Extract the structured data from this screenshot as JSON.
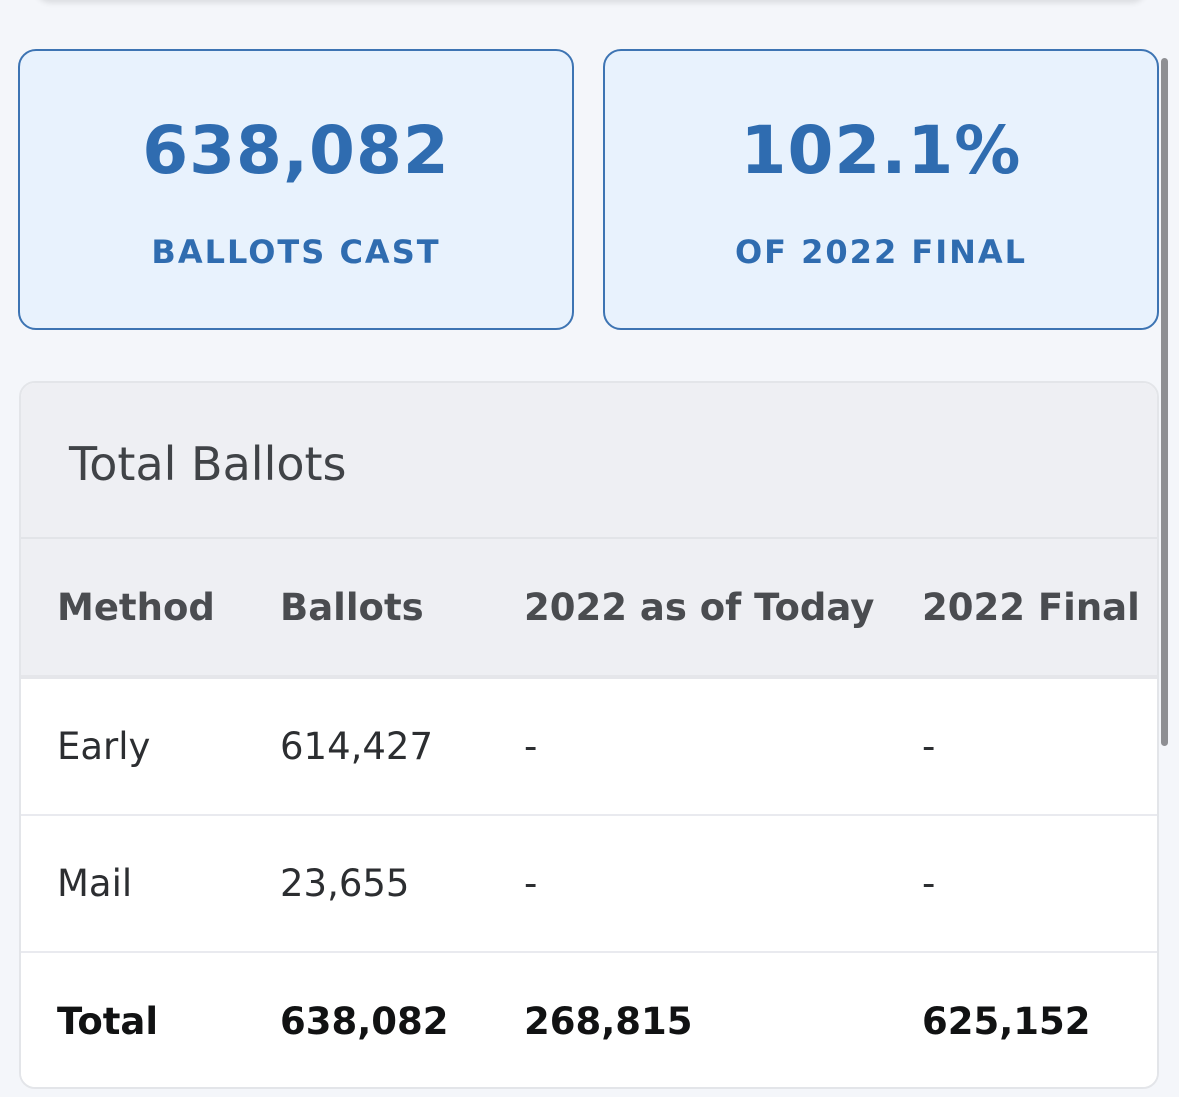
{
  "stats": {
    "ballots_cast": {
      "value": "638,082",
      "label": "BALLOTS CAST"
    },
    "pct_of_final": {
      "value": "102.1%",
      "label": "OF 2022 FINAL"
    }
  },
  "table": {
    "title": "Total Ballots",
    "columns": [
      "Method",
      "Ballots",
      "2022 as of Today",
      "2022 Final"
    ],
    "rows": [
      [
        "Early",
        "614,427",
        "-",
        "-"
      ],
      [
        "Mail",
        "23,655",
        "-",
        "-"
      ]
    ],
    "total": [
      "Total",
      "638,082",
      "268,815",
      "625,152"
    ]
  },
  "colors": {
    "accent": "#2f6cb0",
    "stat_card_bg": "#e8f2fd",
    "header_bg": "#eeeff3"
  }
}
